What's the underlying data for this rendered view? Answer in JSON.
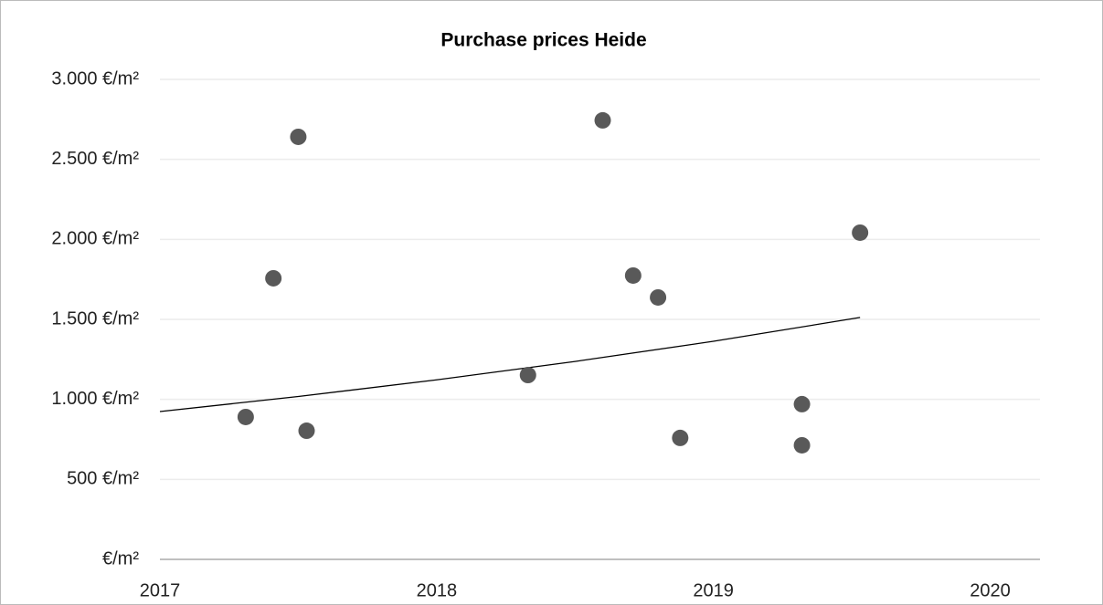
{
  "chart_data": {
    "type": "scatter",
    "title": "Purchase prices Heide",
    "series": [
      {
        "color": "#595959",
        "x": [
          2017.31,
          2017.41,
          2017.5,
          2017.53,
          2018.33,
          2018.6,
          2018.71,
          2018.8,
          2018.88,
          2019.32,
          2019.32,
          2019.53
        ],
        "values": [
          890,
          1757,
          2641,
          804,
          1152,
          2744,
          1774,
          1637,
          759,
          970,
          713,
          2042
        ]
      }
    ],
    "trendline": {
      "type": "exponential",
      "color": "#000000",
      "x": [
        2017,
        2017.5,
        2018,
        2018.5,
        2019,
        2019.53
      ],
      "values": [
        924,
        1018,
        1122,
        1237,
        1363,
        1512
      ]
    },
    "xlim": [
      2017,
      2020.18
    ],
    "xticks": [
      2017,
      2018,
      2019,
      2020
    ],
    "ylim": [
      0,
      3000
    ],
    "yticks": [
      {
        "value": 0,
        "label": "€/m²"
      },
      {
        "value": 500,
        "label": "500 €/m²"
      },
      {
        "value": 1000,
        "label": "1.000 €/m²"
      },
      {
        "value": 1500,
        "label": "1.500 €/m²"
      },
      {
        "value": 2000,
        "label": "2.000 €/m²"
      },
      {
        "value": 2500,
        "label": "2.500 €/m²"
      },
      {
        "value": 3000,
        "label": "3.000 €/m²"
      }
    ],
    "grid": true
  }
}
